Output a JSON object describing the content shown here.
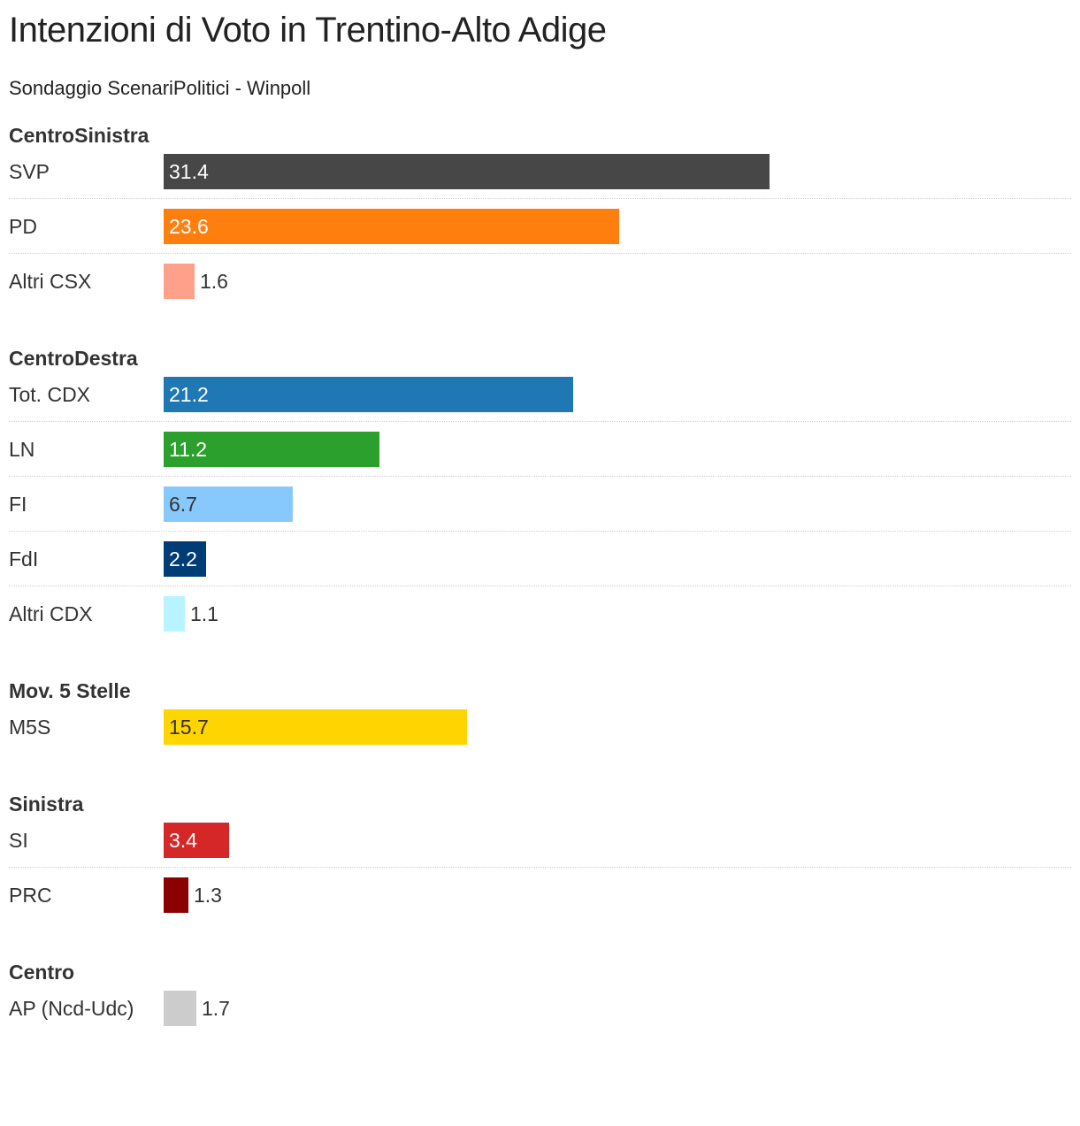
{
  "chart_data": {
    "type": "bar",
    "orientation": "horizontal",
    "title": "Intenzioni di Voto in Trentino-Alto Adige",
    "subtitle": "Sondaggio ScenariPolitici - Winpoll",
    "grid": false,
    "legend": "none",
    "groups": [
      {
        "name": "CentroSinistra",
        "rows": [
          {
            "label": "SVP",
            "value": 31.4,
            "display": "31.4",
            "color": "#474747",
            "text_color": "#ffffff"
          },
          {
            "label": "PD",
            "value": 23.6,
            "display": "23.6",
            "color": "#ff7f0e",
            "text_color": "#ffffff"
          },
          {
            "label": "Altri CSX",
            "value": 1.6,
            "display": "1.6",
            "color": "#ffa08a",
            "text_color": "#333333"
          }
        ]
      },
      {
        "name": "CentroDestra",
        "rows": [
          {
            "label": "Tot. CDX",
            "value": 21.2,
            "display": "21.2",
            "color": "#1f77b4",
            "text_color": "#ffffff"
          },
          {
            "label": "LN",
            "value": 11.2,
            "display": "11.2",
            "color": "#2ca02c",
            "text_color": "#ffffff"
          },
          {
            "label": "FI",
            "value": 6.7,
            "display": "6.7",
            "color": "#87c9fd",
            "text_color": "#333333"
          },
          {
            "label": "FdI",
            "value": 2.2,
            "display": "2.2",
            "color": "#003c76",
            "text_color": "#ffffff"
          },
          {
            "label": "Altri CDX",
            "value": 1.1,
            "display": "1.1",
            "color": "#b8f4ff",
            "text_color": "#333333"
          }
        ]
      },
      {
        "name": "Mov. 5 Stelle",
        "rows": [
          {
            "label": "M5S",
            "value": 15.7,
            "display": "15.7",
            "color": "#ffd500",
            "text_color": "#333333"
          }
        ]
      },
      {
        "name": "Sinistra",
        "rows": [
          {
            "label": "SI",
            "value": 3.4,
            "display": "3.4",
            "color": "#d62728",
            "text_color": "#ffffff"
          },
          {
            "label": "PRC",
            "value": 1.3,
            "display": "1.3",
            "color": "#8b0000",
            "text_color": "#333333"
          }
        ]
      },
      {
        "name": "Centro",
        "rows": [
          {
            "label": "AP (Ncd-Udc)",
            "value": 1.7,
            "display": "1.7",
            "color": "#cccccc",
            "text_color": "#333333"
          }
        ]
      }
    ]
  }
}
